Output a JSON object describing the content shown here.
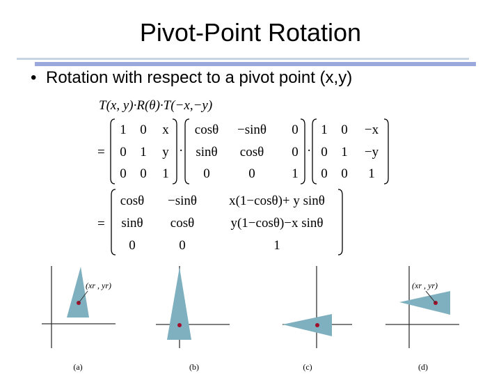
{
  "slide": {
    "title": "Pivot-Point Rotation",
    "bullet": "Rotation with respect to a pivot point (x,y)"
  },
  "equation": {
    "lhs": "T(x, y)·R(θ)·T(−x,−y)",
    "equals": "=",
    "dot": "·",
    "matrix_translate": [
      [
        "1",
        "0",
        "x"
      ],
      [
        "0",
        "1",
        "y"
      ],
      [
        "0",
        "0",
        "1"
      ]
    ],
    "matrix_rotate": [
      [
        "cosθ",
        "−sinθ",
        "0"
      ],
      [
        "sinθ",
        "cosθ",
        "0"
      ],
      [
        "0",
        "0",
        "1"
      ]
    ],
    "matrix_translate_inv": [
      [
        "1",
        "0",
        "−x"
      ],
      [
        "0",
        "1",
        "−y"
      ],
      [
        "0",
        "0",
        "1"
      ]
    ],
    "matrix_result": [
      [
        "cosθ",
        "−sinθ",
        "x(1−cosθ)+ y sinθ"
      ],
      [
        "sinθ",
        "cosθ",
        "y(1−cosθ)−x sinθ"
      ],
      [
        "0",
        "0",
        "1"
      ]
    ]
  },
  "figure": {
    "pivot_label": "(xr , yr)",
    "panels": [
      "(a)",
      "(b)",
      "(c)",
      "(d)"
    ],
    "colors": {
      "shape": "#7fb0c0",
      "pivot": "#a0102a",
      "axis": "#333333"
    }
  }
}
